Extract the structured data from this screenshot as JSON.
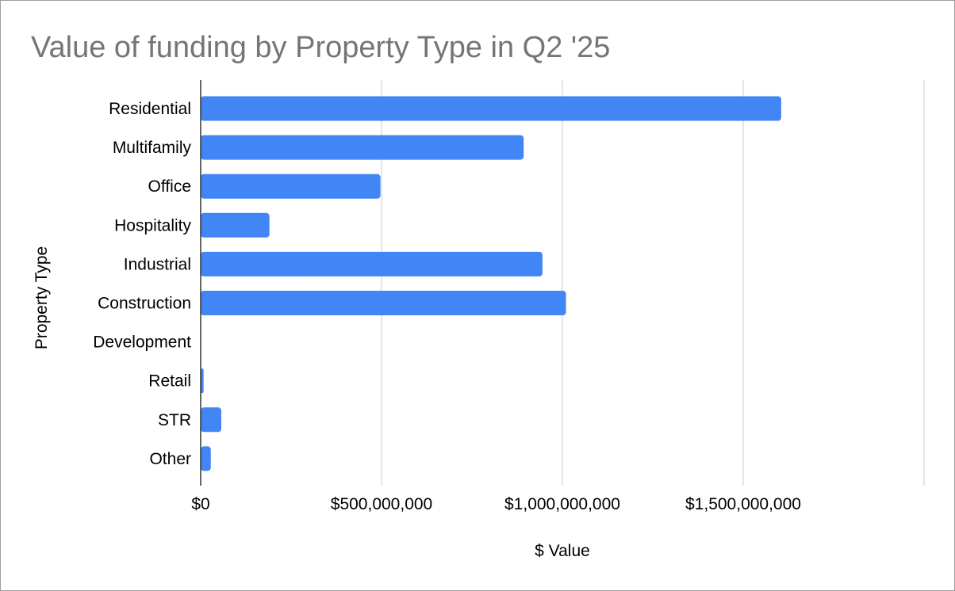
{
  "chart_data": {
    "type": "bar",
    "orientation": "horizontal",
    "title": "Value of funding by Property Type in Q2 '25",
    "xlabel": "$ Value",
    "ylabel": "Property Type",
    "categories": [
      "Residential",
      "Multifamily",
      "Office",
      "Hospitality",
      "Industrial",
      "Construction",
      "Development",
      "Retail",
      "STR",
      "Other"
    ],
    "values": [
      1605000000,
      893000000,
      497000000,
      190000000,
      945000000,
      1010000000,
      0,
      8000000,
      57000000,
      28000000
    ],
    "xlim": [
      0,
      2000000000
    ],
    "xticks": [
      {
        "value": 0,
        "label": "$0"
      },
      {
        "value": 500000000,
        "label": "$500,000,000"
      },
      {
        "value": 1000000000,
        "label": "$1,000,000,000"
      },
      {
        "value": 1500000000,
        "label": "$1,500,000,000"
      }
    ],
    "grid": true,
    "legend": "none",
    "bar_color": "#4285f4",
    "grid_color": "#cccccc"
  }
}
